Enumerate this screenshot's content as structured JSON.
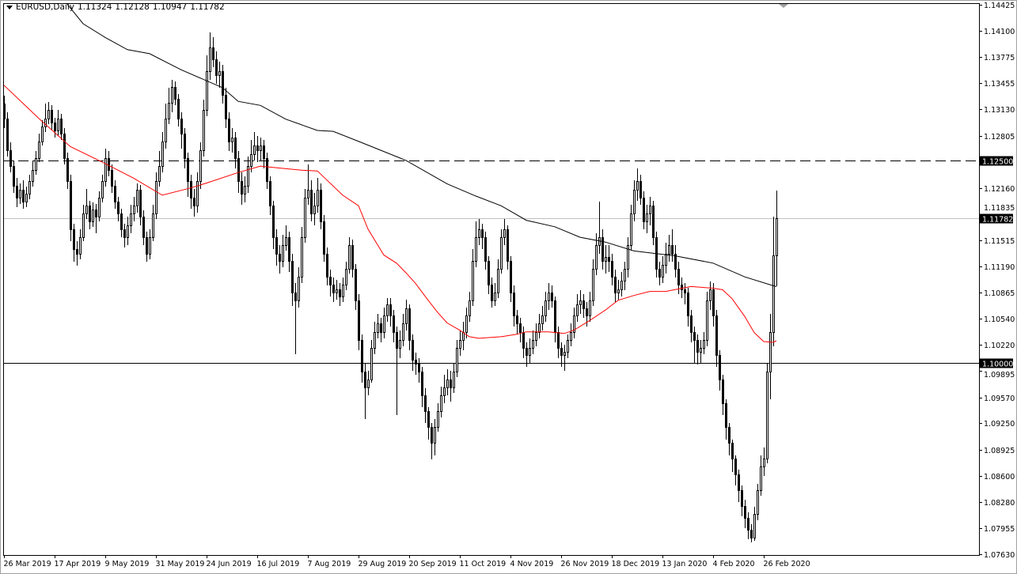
{
  "header": {
    "symbol": "EURUSD,Daily",
    "open": "1.11324",
    "high": "1.12128",
    "low": "1.10947",
    "close": "1.11782"
  },
  "colors": {
    "bull_body": "#ffffff",
    "bear_body": "#000000",
    "candle_outline": "#000000",
    "ma_fast": "#ff0000",
    "ma_slow": "#000000",
    "bid_line": "#c0c0c0",
    "level_line": "#000000"
  },
  "chart_data": {
    "type": "candlestick",
    "symbol": "EURUSD",
    "timeframe": "Daily",
    "ylim": [
      1.0763,
      1.14425
    ],
    "grid": false,
    "x_tick_labels": [
      "26 Mar 2019",
      "17 Apr 2019",
      "9 May 2019",
      "31 May 2019",
      "24 Jun 2019",
      "16 Jul 2019",
      "7 Aug 2019",
      "29 Aug 2019",
      "20 Sep 2019",
      "11 Oct 2019",
      "4 Nov 2019",
      "26 Nov 2019",
      "18 Dec 2019",
      "13 Jan 2020",
      "4 Feb 2020",
      "26 Feb 2020"
    ],
    "y_tick_labels": [
      "1.14425",
      "1.14100",
      "1.13775",
      "1.13455",
      "1.13130",
      "1.12805",
      "1.12160",
      "1.11835",
      "1.11515",
      "1.11190",
      "1.10865",
      "1.10540",
      "1.10220",
      "1.09895",
      "1.09570",
      "1.09250",
      "1.08925",
      "1.08600",
      "1.08280",
      "1.07955",
      "1.07630"
    ],
    "horizontal_levels": [
      {
        "price": 1.125,
        "label": "1.12500",
        "style": "dashed"
      },
      {
        "price": 1.1,
        "label": "1.10000",
        "style": "solid"
      },
      {
        "price": 1.11782,
        "label": "1.11782",
        "style": "bid"
      }
    ],
    "first_open": 1.132,
    "close": [
      1.1302,
      1.1263,
      1.1243,
      1.1219,
      1.1204,
      1.1214,
      1.1199,
      1.1209,
      1.1224,
      1.1238,
      1.1253,
      1.1273,
      1.1292,
      1.1302,
      1.1312,
      1.1297,
      1.1287,
      1.1302,
      1.1283,
      1.1253,
      1.1224,
      1.1165,
      1.114,
      1.1135,
      1.1155,
      1.1184,
      1.1194,
      1.1175,
      1.1189,
      1.118,
      1.1204,
      1.1224,
      1.1253,
      1.1238,
      1.1219,
      1.1199,
      1.1184,
      1.1165,
      1.1155,
      1.117,
      1.1184,
      1.1194,
      1.1214,
      1.118,
      1.1155,
      1.1135,
      1.1155,
      1.1184,
      1.1224,
      1.1243,
      1.1273,
      1.1302,
      1.1321,
      1.1341,
      1.1326,
      1.1302,
      1.1283,
      1.1253,
      1.1224,
      1.1204,
      1.1194,
      1.1224,
      1.1263,
      1.1312,
      1.136,
      1.139,
      1.1375,
      1.1355,
      1.136,
      1.1331,
      1.1302,
      1.1273,
      1.1278,
      1.1253,
      1.1224,
      1.1209,
      1.1219,
      1.1243,
      1.1258,
      1.1268,
      1.1263,
      1.1268,
      1.1253,
      1.1224,
      1.1194,
      1.1155,
      1.1135,
      1.1126,
      1.1145,
      1.1155,
      1.1126,
      1.1087,
      1.1077,
      1.1106,
      1.1155,
      1.1204,
      1.1214,
      1.1184,
      1.1194,
      1.1214,
      1.1175,
      1.1135,
      1.1106,
      1.1096,
      1.1087,
      1.1091,
      1.1082,
      1.1096,
      1.1116,
      1.1145,
      1.1116,
      1.1077,
      1.1028,
      1.0989,
      1.0969,
      1.0979,
      1.1018,
      1.1038,
      1.1048,
      1.1038,
      1.1058,
      1.1072,
      1.1058,
      1.1038,
      1.1018,
      1.1028,
      1.1048,
      1.1067,
      1.1028,
      1.1004,
      1.0999,
      1.0989,
      1.096,
      1.094,
      1.092,
      1.0901,
      1.092,
      1.094,
      1.096,
      1.0969,
      1.0979,
      1.0969,
      1.0989,
      1.1018,
      1.1028,
      1.1038,
      1.1058,
      1.1077,
      1.1126,
      1.1155,
      1.1165,
      1.1155,
      1.1126,
      1.1096,
      1.1077,
      1.1087,
      1.1116,
      1.1155,
      1.1165,
      1.1126,
      1.1087,
      1.1058,
      1.1048,
      1.1038,
      1.1018,
      1.1009,
      1.1018,
      1.1028,
      1.1038,
      1.1048,
      1.1058,
      1.1077,
      1.1087,
      1.1077,
      1.1038,
      1.1018,
      1.1009,
      1.1013,
      1.1028,
      1.1038,
      1.1058,
      1.1072,
      1.1077,
      1.1067,
      1.1058,
      1.1077,
      1.1116,
      1.1145,
      1.1155,
      1.1126,
      1.1131,
      1.1126,
      1.1106,
      1.1087,
      1.1091,
      1.1101,
      1.1116,
      1.1145,
      1.1184,
      1.1214,
      1.1224,
      1.1204,
      1.1175,
      1.1184,
      1.1194,
      1.1155,
      1.1116,
      1.1106,
      1.1121,
      1.1135,
      1.1145,
      1.1135,
      1.1116,
      1.1096,
      1.1091,
      1.1087,
      1.1058,
      1.1038,
      1.1028,
      1.1013,
      1.1018,
      1.1028,
      1.1077,
      1.1091,
      1.1058,
      1.1009,
      1.0979,
      1.095,
      1.092,
      1.0901,
      1.0881,
      1.0862,
      1.0842,
      1.0823,
      1.0808,
      1.0793,
      1.0784,
      1.0813,
      1.0842,
      1.0872,
      1.0881,
      1.0989,
      1.1038,
      1.11324,
      1.11782
    ],
    "high": [
      1.133,
      1.131,
      1.1272,
      1.125,
      1.1228,
      1.1222,
      1.1225,
      1.1218,
      1.1232,
      1.125,
      1.1262,
      1.1283,
      1.13,
      1.132,
      1.1322,
      1.1318,
      1.1303,
      1.1312,
      1.1308,
      1.129,
      1.126,
      1.1232,
      1.1172,
      1.115,
      1.1165,
      1.1195,
      1.1215,
      1.12,
      1.1198,
      1.1196,
      1.1212,
      1.1232,
      1.1265,
      1.1262,
      1.1245,
      1.1225,
      1.1205,
      1.119,
      1.1172,
      1.118,
      1.1195,
      1.1205,
      1.1222,
      1.122,
      1.1188,
      1.1162,
      1.1165,
      1.1195,
      1.1235,
      1.1262,
      1.1285,
      1.132,
      1.134,
      1.135,
      1.1348,
      1.1332,
      1.131,
      1.129,
      1.126,
      1.1232,
      1.1215,
      1.1235,
      1.1272,
      1.1325,
      1.138,
      1.1408,
      1.1402,
      1.1385,
      1.1372,
      1.1368,
      1.134,
      1.131,
      1.129,
      1.1285,
      1.1262,
      1.1235,
      1.123,
      1.1255,
      1.1275,
      1.1285,
      1.128,
      1.1278,
      1.1275,
      1.126,
      1.123,
      1.12,
      1.1165,
      1.1145,
      1.1158,
      1.117,
      1.1162,
      1.1135,
      1.1098,
      1.1118,
      1.1168,
      1.1215,
      1.1245,
      1.1225,
      1.121,
      1.1228,
      1.1222,
      1.1182,
      1.1142,
      1.1115,
      1.1105,
      1.1102,
      1.1098,
      1.1105,
      1.1125,
      1.1155,
      1.1152,
      1.1122,
      1.1085,
      1.1035,
      1.1,
      1.099,
      1.1028,
      1.105,
      1.106,
      1.1055,
      1.1068,
      1.108,
      1.108,
      1.1065,
      1.1045,
      1.104,
      1.106,
      1.1078,
      1.1072,
      1.1035,
      1.1012,
      1.1005,
      1.0995,
      1.0968,
      1.0945,
      1.0925,
      1.093,
      1.095,
      1.097,
      1.0985,
      1.0992,
      1.099,
      1.1,
      1.1028,
      1.104,
      1.105,
      1.1068,
      1.1088,
      1.114,
      1.1175,
      1.1178,
      1.1172,
      1.1162,
      1.1132,
      1.1105,
      1.1098,
      1.1128,
      1.1165,
      1.1178,
      1.117,
      1.1132,
      1.1095,
      1.1065,
      1.1055,
      1.1045,
      1.1025,
      1.103,
      1.104,
      1.1048,
      1.106,
      1.107,
      1.1088,
      1.1098,
      1.1095,
      1.1082,
      1.1045,
      1.1025,
      1.1022,
      1.1035,
      1.1048,
      1.1068,
      1.1085,
      1.109,
      1.1085,
      1.1075,
      1.1088,
      1.1128,
      1.116,
      1.1199,
      1.1165,
      1.1145,
      1.1145,
      1.1135,
      1.1115,
      1.1102,
      1.1112,
      1.1125,
      1.1155,
      1.1195,
      1.1225,
      1.124,
      1.1232,
      1.1212,
      1.1195,
      1.1205,
      1.12,
      1.1162,
      1.1125,
      1.1132,
      1.1148,
      1.1158,
      1.1165,
      1.1145,
      1.1125,
      1.1105,
      1.1098,
      1.1092,
      1.1065,
      1.1045,
      1.1035,
      1.1028,
      1.1038,
      1.1088,
      1.11,
      1.1098,
      1.1065,
      1.1015,
      1.0985,
      1.0955,
      1.0925,
      1.0905,
      1.0885,
      1.0868,
      1.0848,
      1.083,
      1.0815,
      1.08,
      1.0822,
      1.085,
      1.0885,
      1.0895,
      1.1,
      1.106,
      1.118,
      1.12128
    ],
    "low": [
      1.129,
      1.1255,
      1.1235,
      1.121,
      1.1192,
      1.1196,
      1.119,
      1.1192,
      1.1202,
      1.1218,
      1.1232,
      1.1248,
      1.1268,
      1.1285,
      1.1295,
      1.1288,
      1.1278,
      1.128,
      1.1275,
      1.1245,
      1.1215,
      1.115,
      1.1125,
      1.112,
      1.1128,
      1.115,
      1.1178,
      1.1165,
      1.1168,
      1.116,
      1.1175,
      1.1198,
      1.1218,
      1.123,
      1.121,
      1.119,
      1.1175,
      1.1155,
      1.1142,
      1.1145,
      1.116,
      1.1175,
      1.1185,
      1.117,
      1.1145,
      1.1125,
      1.1128,
      1.115,
      1.1178,
      1.1218,
      1.1235,
      1.1265,
      1.1295,
      1.131,
      1.1318,
      1.1292,
      1.1265,
      1.124,
      1.1205,
      1.119,
      1.118,
      1.1185,
      1.1215,
      1.1255,
      1.1305,
      1.135,
      1.1365,
      1.1345,
      1.134,
      1.132,
      1.129,
      1.1262,
      1.126,
      1.124,
      1.121,
      1.1195,
      1.1198,
      1.121,
      1.1235,
      1.125,
      1.1248,
      1.125,
      1.124,
      1.1215,
      1.1182,
      1.114,
      1.112,
      1.111,
      1.1118,
      1.1138,
      1.1112,
      1.107,
      1.101,
      1.1068,
      1.1098,
      1.1148,
      1.1195,
      1.1175,
      1.117,
      1.1185,
      1.1165,
      1.1125,
      1.1095,
      1.1082,
      1.1075,
      1.1078,
      1.107,
      1.1075,
      1.109,
      1.111,
      1.1105,
      1.1065,
      1.1015,
      1.0975,
      1.093,
      1.096,
      1.0975,
      1.101,
      1.103,
      1.1025,
      1.103,
      1.105,
      1.1045,
      1.1025,
      1.0935,
      1.1005,
      1.102,
      1.104,
      1.1015,
      1.099,
      1.0985,
      1.0975,
      1.0945,
      1.0925,
      1.0905,
      1.088,
      1.0885,
      1.0915,
      1.0932,
      1.095,
      1.096,
      1.0952,
      1.0962,
      1.0982,
      1.1008,
      1.1015,
      1.103,
      1.105,
      1.107,
      1.1118,
      1.1145,
      1.114,
      1.1115,
      1.1085,
      1.1068,
      1.107,
      1.108,
      1.111,
      1.1145,
      1.1115,
      1.1075,
      1.1045,
      1.1035,
      1.1025,
      1.1005,
      1.0995,
      1.1,
      1.101,
      1.102,
      1.103,
      1.104,
      1.105,
      1.1065,
      1.1068,
      1.1025,
      1.1005,
      1.0995,
      1.099,
      1.1005,
      1.102,
      1.103,
      1.105,
      1.106,
      1.1055,
      1.1045,
      1.105,
      1.107,
      1.1108,
      1.1135,
      1.1115,
      1.111,
      1.1112,
      1.1095,
      1.1075,
      1.1078,
      1.1082,
      1.109,
      1.1105,
      1.1138,
      1.1175,
      1.12,
      1.1195,
      1.1165,
      1.116,
      1.117,
      1.1145,
      1.1105,
      1.1095,
      1.1098,
      1.111,
      1.1125,
      1.1125,
      1.1105,
      1.1085,
      1.108,
      1.1072,
      1.1045,
      1.1025,
      1.1,
      1.0998,
      1.1,
      1.101,
      1.102,
      1.1065,
      1.1045,
      1.0995,
      1.0965,
      1.0935,
      1.0905,
      1.0885,
      1.0865,
      1.0848,
      1.0828,
      1.081,
      1.0795,
      1.0782,
      1.0778,
      1.078,
      1.0805,
      1.0835,
      1.086,
      1.0875,
      1.0955,
      1.102,
      1.10947
    ],
    "ma_fast_points": [
      [
        0,
        1.1343
      ],
      [
        11,
        1.1302
      ],
      [
        21,
        1.1267
      ],
      [
        31,
        1.1248
      ],
      [
        41,
        1.1228
      ],
      [
        50,
        1.1207
      ],
      [
        59,
        1.1216
      ],
      [
        64,
        1.1222
      ],
      [
        74,
        1.1235
      ],
      [
        81,
        1.1243
      ],
      [
        86,
        1.1241
      ],
      [
        94,
        1.1238
      ],
      [
        99,
        1.1237
      ],
      [
        107,
        1.1207
      ],
      [
        112,
        1.1194
      ],
      [
        115,
        1.1165
      ],
      [
        120,
        1.1133
      ],
      [
        124,
        1.1123
      ],
      [
        127,
        1.1111
      ],
      [
        130,
        1.1098
      ],
      [
        134,
        1.1077
      ],
      [
        137,
        1.1062
      ],
      [
        140,
        1.1049
      ],
      [
        144,
        1.104
      ],
      [
        147,
        1.1032
      ],
      [
        150,
        1.103
      ],
      [
        157,
        1.1032
      ],
      [
        162,
        1.1035
      ],
      [
        165,
        1.1038
      ],
      [
        172,
        1.1038
      ],
      [
        177,
        1.1036
      ],
      [
        180,
        1.104
      ],
      [
        185,
        1.1052
      ],
      [
        190,
        1.1065
      ],
      [
        194,
        1.1077
      ],
      [
        199,
        1.1083
      ],
      [
        204,
        1.1088
      ],
      [
        209,
        1.1088
      ],
      [
        217,
        1.1094
      ],
      [
        224,
        1.1092
      ],
      [
        227,
        1.109
      ],
      [
        230,
        1.1079
      ],
      [
        234,
        1.1057
      ],
      [
        237,
        1.1037
      ],
      [
        240,
        1.1026
      ],
      [
        243,
        1.1025
      ],
      [
        244,
        1.1027
      ]
    ],
    "ma_slow_points": [
      [
        17,
        1.1458
      ],
      [
        19,
        1.1448
      ],
      [
        25,
        1.1419
      ],
      [
        32,
        1.1402
      ],
      [
        39,
        1.1387
      ],
      [
        46,
        1.1382
      ],
      [
        56,
        1.1362
      ],
      [
        69,
        1.134
      ],
      [
        74,
        1.1323
      ],
      [
        81,
        1.1318
      ],
      [
        89,
        1.1301
      ],
      [
        99,
        1.1287
      ],
      [
        104,
        1.1286
      ],
      [
        113,
        1.1272
      ],
      [
        127,
        1.125
      ],
      [
        140,
        1.1221
      ],
      [
        149,
        1.1206
      ],
      [
        157,
        1.1194
      ],
      [
        165,
        1.1176
      ],
      [
        174,
        1.1168
      ],
      [
        182,
        1.1155
      ],
      [
        190,
        1.1149
      ],
      [
        199,
        1.1138
      ],
      [
        212,
        1.1132
      ],
      [
        224,
        1.1123
      ],
      [
        234,
        1.1106
      ],
      [
        243,
        1.1095
      ],
      [
        244,
        1.1094
      ]
    ]
  }
}
